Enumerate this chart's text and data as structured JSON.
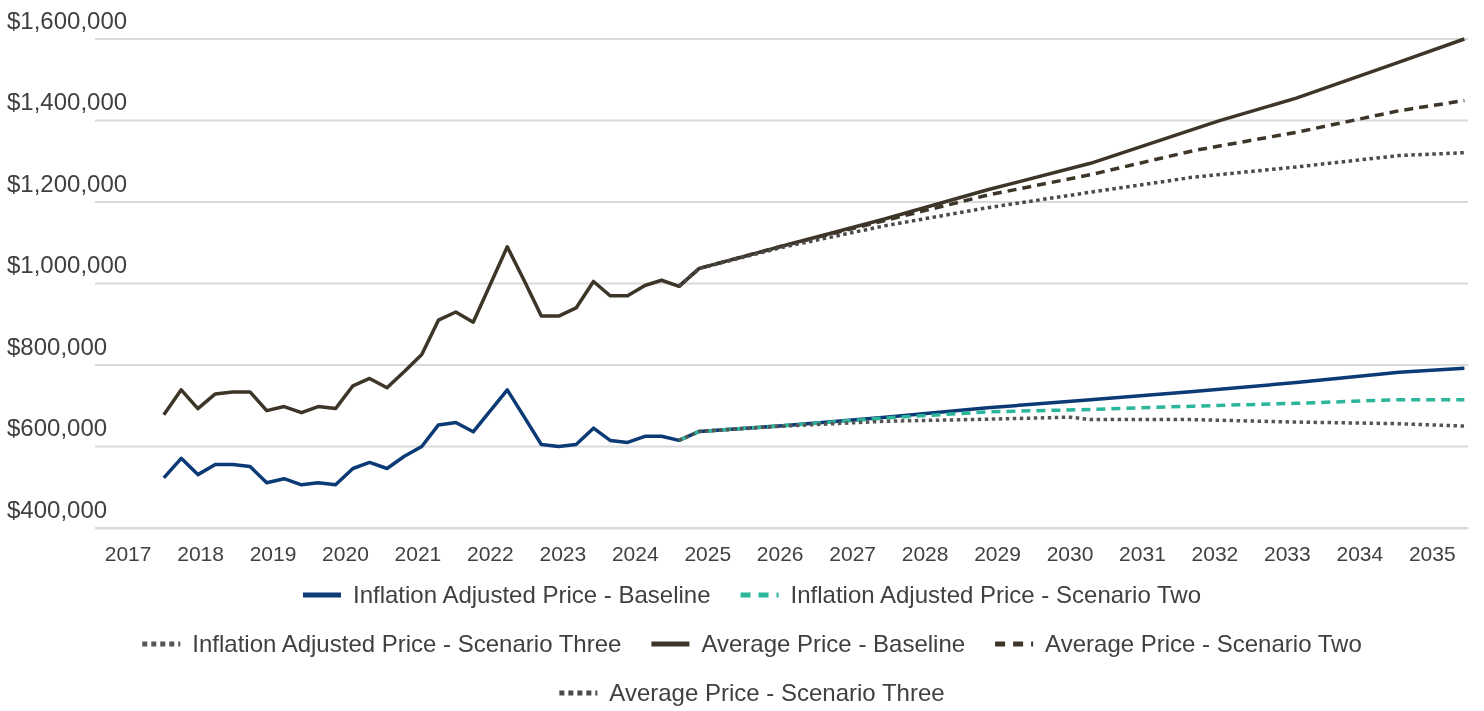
{
  "chart_data": {
    "type": "line",
    "xlim": [
      2016.55,
      2035.5
    ],
    "xticks": [
      2017,
      2018,
      2019,
      2020,
      2021,
      2022,
      2023,
      2024,
      2025,
      2026,
      2027,
      2028,
      2029,
      2030,
      2031,
      2032,
      2033,
      2034,
      2035
    ],
    "ylim": [
      400000,
      1600000
    ],
    "yticks": [
      {
        "value": 400000,
        "label": "$400,000"
      },
      {
        "value": 600000,
        "label": "$600,000"
      },
      {
        "value": 800000,
        "label": "$800,000"
      },
      {
        "value": 1000000,
        "label": "$1,000,000"
      },
      {
        "value": 1200000,
        "label": "$1,200,000"
      },
      {
        "value": 1400000,
        "label": "$1,400,000"
      },
      {
        "value": 1600000,
        "label": "$1,600,000"
      }
    ],
    "grid": "y",
    "legend": "bottom",
    "marker": "none",
    "series": [
      {
        "name": "Inflation Adjusted Price - Baseline",
        "color": "#0b3a75",
        "line_style": "solid",
        "x": [
          2017.5,
          2017.74,
          2017.97,
          2018.21,
          2018.45,
          2018.69,
          2018.92,
          2019.16,
          2019.4,
          2019.63,
          2019.87,
          2020.11,
          2020.34,
          2020.58,
          2020.82,
          2021.06,
          2021.29,
          2021.53,
          2021.77,
          2022.24,
          2022.48,
          2022.71,
          2022.95,
          2023.19,
          2023.43,
          2023.66,
          2023.9,
          2024.14,
          2024.37,
          2024.61,
          2024.89,
          2026.04,
          2027.46,
          2028.87,
          2030.29,
          2031.71,
          2033.13,
          2034.55,
          2035.45
        ],
        "values": [
          523000,
          571000,
          531000,
          556000,
          556000,
          551000,
          511000,
          521000,
          506000,
          511000,
          506000,
          546000,
          561000,
          546000,
          576000,
          600000,
          653000,
          659000,
          636000,
          739000,
          671000,
          605000,
          600000,
          605000,
          645000,
          615000,
          610000,
          625000,
          625000,
          615000,
          637000,
          651000,
          672000,
          695000,
          715000,
          735000,
          757000,
          782000,
          792000
        ]
      },
      {
        "name": "Inflation Adjusted Price - Scenario Two",
        "color": "#2bb59a",
        "line_style": "dashed",
        "x": [
          2024.61,
          2024.89,
          2026.04,
          2027.46,
          2028.87,
          2030.29,
          2031.71,
          2033.13,
          2034.55,
          2035.45
        ],
        "values": [
          615000,
          637000,
          651000,
          670000,
          685000,
          691000,
          699000,
          706000,
          715000,
          715000
        ]
      },
      {
        "name": "Inflation Adjusted Price - Scenario Three",
        "color": "#555555",
        "line_style": "dotted",
        "x": [
          2024.61,
          2024.89,
          2026.04,
          2027.46,
          2028.87,
          2030.01,
          2030.29,
          2031.71,
          2033.13,
          2034.55,
          2035.45
        ],
        "values": [
          615000,
          637000,
          650000,
          662000,
          667000,
          672000,
          666000,
          666000,
          660000,
          656000,
          650000
        ]
      },
      {
        "name": "Average Price - Baseline",
        "color": "#3d3528",
        "line_style": "solid",
        "x": [
          2017.5,
          2017.74,
          2017.97,
          2018.21,
          2018.45,
          2018.69,
          2018.92,
          2019.16,
          2019.4,
          2019.63,
          2019.87,
          2020.11,
          2020.34,
          2020.58,
          2020.82,
          2021.06,
          2021.29,
          2021.53,
          2021.77,
          2022.24,
          2022.48,
          2022.71,
          2022.95,
          2023.19,
          2023.43,
          2023.66,
          2023.9,
          2024.14,
          2024.37,
          2024.61,
          2024.89,
          2026.04,
          2027.46,
          2028.87,
          2030.29,
          2032.06,
          2033.13,
          2034.48,
          2035.45
        ],
        "values": [
          678000,
          739000,
          693000,
          729000,
          734000,
          734000,
          688000,
          698000,
          683000,
          698000,
          693000,
          749000,
          767000,
          744000,
          784000,
          826000,
          910000,
          930000,
          905000,
          1090000,
          1005000,
          920000,
          920000,
          940000,
          1005000,
          970000,
          970000,
          995000,
          1008000,
          993000,
          1037000,
          1092000,
          1159000,
          1230000,
          1295000,
          1399000,
          1455000,
          1539000,
          1600000
        ]
      },
      {
        "name": "Average Price - Scenario Two",
        "color": "#3d3528",
        "line_style": "dashed",
        "x": [
          2024.61,
          2024.89,
          2026.04,
          2027.46,
          2028.87,
          2030.29,
          2031.71,
          2033.13,
          2034.55,
          2035.45
        ],
        "values": [
          993000,
          1037000,
          1092000,
          1155000,
          1217000,
          1267000,
          1326000,
          1371000,
          1424000,
          1449000
        ]
      },
      {
        "name": "Average Price - Scenario Three",
        "color": "#4a4a4a",
        "line_style": "dotted",
        "x": [
          2024.61,
          2024.89,
          2026.04,
          2027.46,
          2028.87,
          2030.29,
          2031.71,
          2033.13,
          2034.55,
          2035.45
        ],
        "values": [
          993000,
          1037000,
          1089000,
          1142000,
          1186000,
          1224000,
          1261000,
          1286000,
          1314000,
          1321000
        ]
      }
    ]
  }
}
